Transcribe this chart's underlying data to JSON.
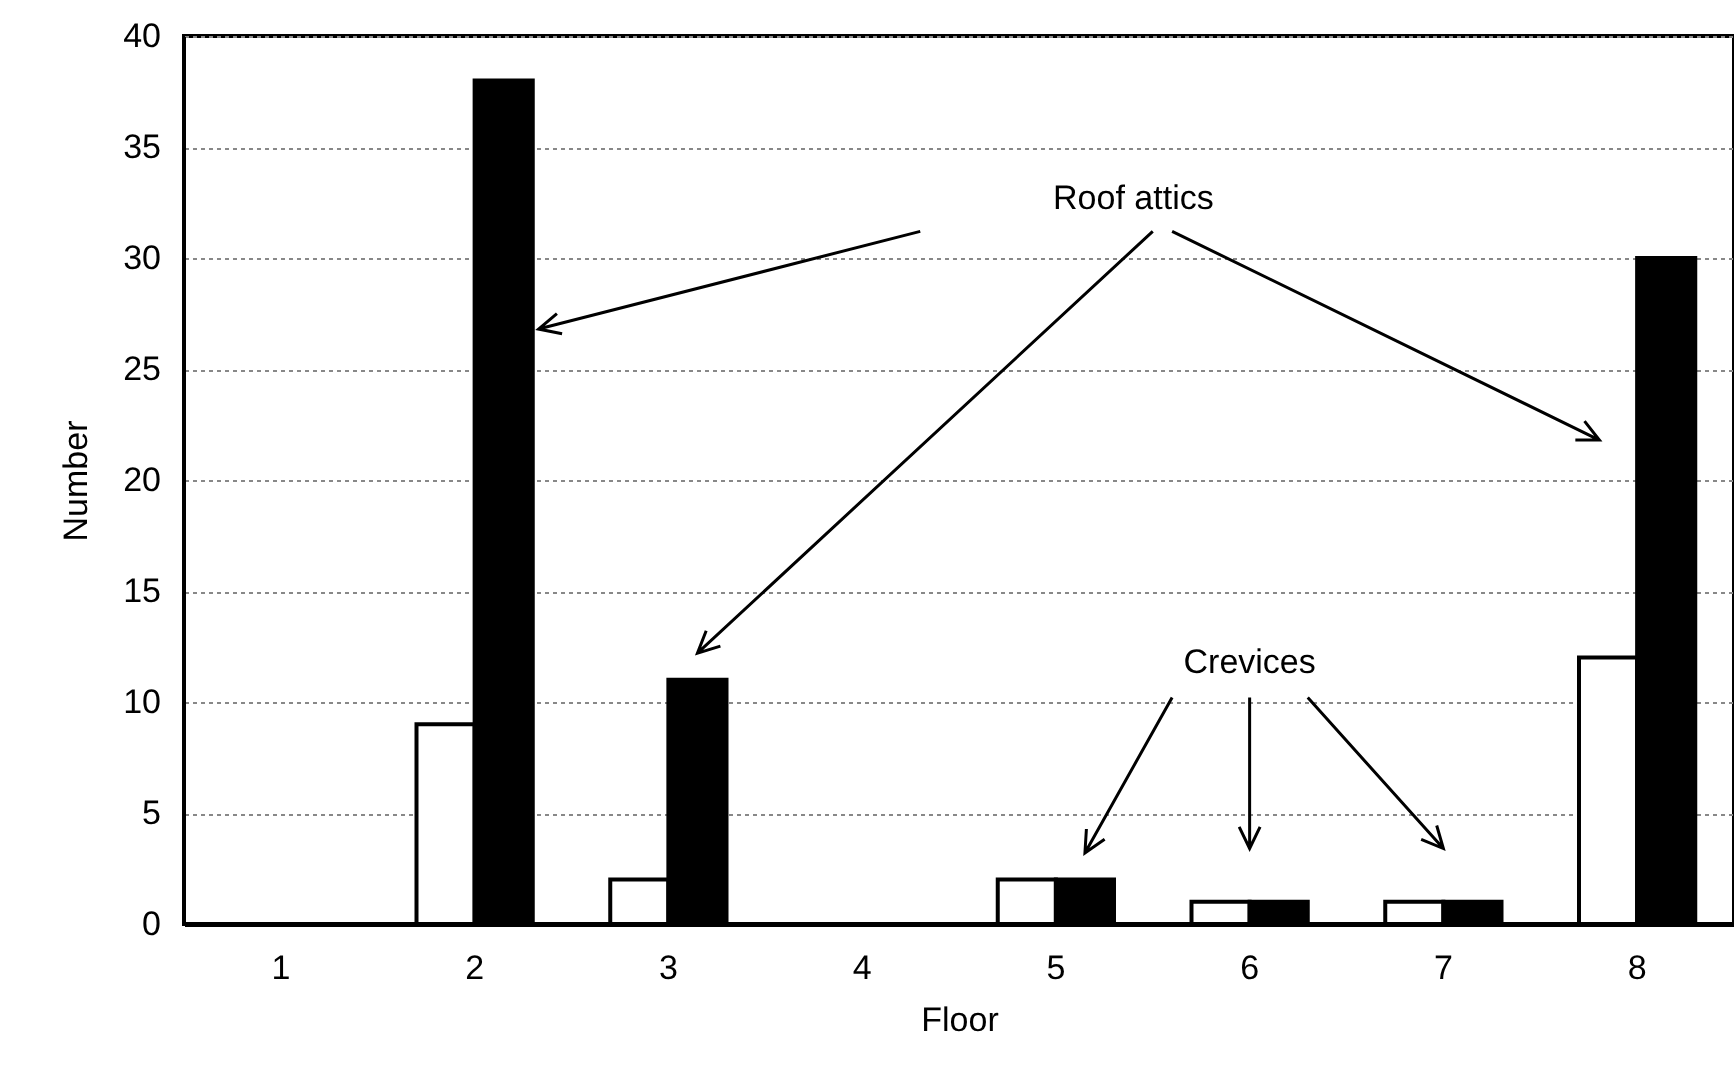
{
  "chart_data": {
    "type": "bar",
    "xlabel": "Floor",
    "ylabel": "Number",
    "categories": [
      "1",
      "2",
      "3",
      "4",
      "5",
      "6",
      "7",
      "8"
    ],
    "series": [
      {
        "color": "#ffffff",
        "values": [
          0,
          9,
          2,
          0,
          2,
          1,
          1,
          12
        ]
      },
      {
        "color": "#000000",
        "values": [
          0,
          38,
          11,
          0,
          2,
          1,
          1,
          30
        ]
      }
    ],
    "ylim": [
      0,
      40
    ],
    "yticks": [
      0,
      5,
      10,
      15,
      20,
      25,
      30,
      35,
      40
    ],
    "grid": "y",
    "annotations": [
      "Roof attics",
      "Crevices"
    ]
  }
}
